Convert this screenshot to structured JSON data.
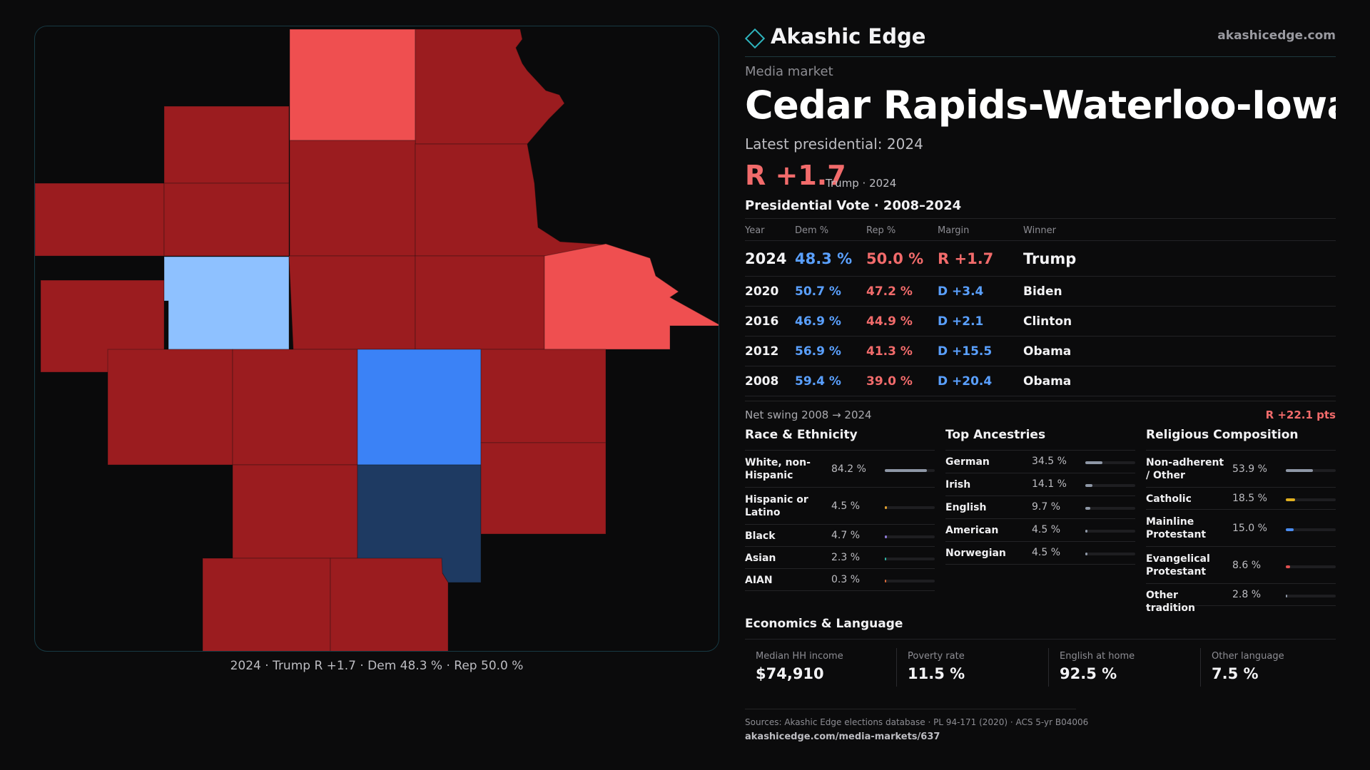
{
  "brand": {
    "name": "Akashic Edge",
    "url": "akashicedge.com"
  },
  "page": {
    "kicker": "Media market",
    "title": "Cedar Rapids-Waterloo-Iowa City & Dubuque",
    "latest": "Latest presidential: 2024",
    "margin": "R +1.7",
    "margin_sub": "Trump · 2024"
  },
  "colors": {
    "strong_rep": "#9b1c1f",
    "lean_rep": "#ef4f50",
    "strong_dem": "#3b82f6",
    "lean_dem": "#8ec1ff",
    "dark_dem": "#1e3a62",
    "accent": "#2fb6bf"
  },
  "map": {
    "caption": "2024 · Trump R +1.7 · Dem 48.3 % · Rep 50.0 %",
    "counties_by_party": [
      "strong_rep",
      "lean_rep",
      "lean_dem",
      "strong_dem",
      "dark_dem"
    ]
  },
  "vote": {
    "section_title": "Presidential Vote · 2008–2024",
    "headers": {
      "year": "Year",
      "dem": "Dem %",
      "rep": "Rep %",
      "margin": "Margin",
      "winner": "Winner"
    },
    "rows": [
      {
        "year": "2024",
        "dem": "48.3 %",
        "rep": "50.0 %",
        "margin": "R +1.7",
        "margin_party": "rep",
        "winner": "Trump"
      },
      {
        "year": "2020",
        "dem": "50.7 %",
        "rep": "47.2 %",
        "margin": "D +3.4",
        "margin_party": "dem",
        "winner": "Biden"
      },
      {
        "year": "2016",
        "dem": "46.9 %",
        "rep": "44.9 %",
        "margin": "D +2.1",
        "margin_party": "dem",
        "winner": "Clinton"
      },
      {
        "year": "2012",
        "dem": "56.9 %",
        "rep": "41.3 %",
        "margin": "D +15.5",
        "margin_party": "dem",
        "winner": "Obama"
      },
      {
        "year": "2008",
        "dem": "59.4 %",
        "rep": "39.0 %",
        "margin": "D +20.4",
        "margin_party": "dem",
        "winner": "Obama"
      }
    ],
    "swing_label": "Net swing 2008 → 2024",
    "swing_value": "R +22.1 pts"
  },
  "race": {
    "title": "Race & Ethnicity",
    "items": [
      {
        "label": "White, non-Hispanic",
        "value": "84.2 %",
        "pct": 84.2,
        "color": "#8e97a6"
      },
      {
        "label": "Hispanic or Latino",
        "value": "4.5 %",
        "pct": 4.5,
        "color": "#e0a030"
      },
      {
        "label": "Black",
        "value": "4.7 %",
        "pct": 4.7,
        "color": "#8e7ad6"
      },
      {
        "label": "Asian",
        "value": "2.3 %",
        "pct": 2.3,
        "color": "#2fb6a5"
      },
      {
        "label": "AIAN",
        "value": "0.3 %",
        "pct": 0.3,
        "color": "#d86a3a"
      }
    ]
  },
  "ancestry": {
    "title": "Top Ancestries",
    "items": [
      {
        "label": "German",
        "value": "34.5 %",
        "pct": 34.5,
        "color": "#8e97a6"
      },
      {
        "label": "Irish",
        "value": "14.1 %",
        "pct": 14.1,
        "color": "#8e97a6"
      },
      {
        "label": "English",
        "value": "9.7 %",
        "pct": 9.7,
        "color": "#8e97a6"
      },
      {
        "label": "American",
        "value": "4.5 %",
        "pct": 4.5,
        "color": "#8e97a6"
      },
      {
        "label": "Norwegian",
        "value": "4.5 %",
        "pct": 4.5,
        "color": "#8e97a6"
      }
    ]
  },
  "religion": {
    "title": "Religious Composition",
    "items": [
      {
        "label": "Non-adherent / Other",
        "value": "53.9 %",
        "pct": 53.9,
        "color": "#8e97a6"
      },
      {
        "label": "Catholic",
        "value": "18.5 %",
        "pct": 18.5,
        "color": "#e0b020"
      },
      {
        "label": "Mainline Protestant",
        "value": "15.0 %",
        "pct": 15.0,
        "color": "#4a8cf0"
      },
      {
        "label": "Evangelical Protestant",
        "value": "8.6 %",
        "pct": 8.6,
        "color": "#e05050"
      },
      {
        "label": "Other tradition",
        "value": "2.8 %",
        "pct": 2.8,
        "color": "#8e97a6"
      }
    ]
  },
  "economics": {
    "title": "Economics & Language",
    "items": [
      {
        "label": "Median HH income",
        "value": "$74,910"
      },
      {
        "label": "Poverty rate",
        "value": "11.5 %"
      },
      {
        "label": "English at home",
        "value": "92.5 %"
      },
      {
        "label": "Other language",
        "value": "7.5 %"
      }
    ]
  },
  "sources": {
    "text": "Sources: Akashic Edge elections database · PL 94-171 (2020) · ACS 5-yr B04006",
    "url": "akashicedge.com/media-markets/637"
  }
}
